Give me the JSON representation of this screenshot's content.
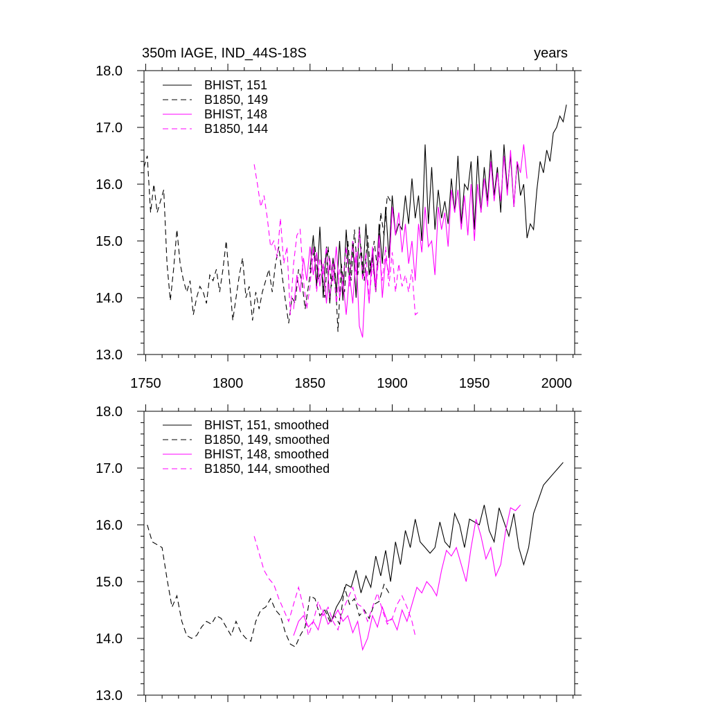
{
  "figure": {
    "title_left": "350m IAGE, IND_44S-18S",
    "title_right": "years"
  },
  "colors": {
    "black": "#000000",
    "magenta": "#ff00ff"
  },
  "chart_data": [
    {
      "type": "line",
      "title": "350m IAGE, IND_44S-18S",
      "units": "years",
      "xlim": [
        1749,
        2011
      ],
      "ylim": [
        13.0,
        18.0
      ],
      "xticks": [
        1750,
        1800,
        1850,
        1900,
        1950,
        2000
      ],
      "yticks": [
        13.0,
        14.0,
        15.0,
        16.0,
        17.0,
        18.0
      ],
      "xtick_labels": [
        "1750",
        "1800",
        "1850",
        "1900",
        "1950",
        "2000"
      ],
      "ytick_labels": [
        "13.0",
        "14.0",
        "15.0",
        "16.0",
        "17.0",
        "18.0"
      ],
      "legend_position": "top-left",
      "series": [
        {
          "name": "BHIST, 151",
          "color": "#000000",
          "dash": "solid",
          "x": [
            1850,
            1852,
            1854,
            1856,
            1858,
            1860,
            1862,
            1864,
            1866,
            1868,
            1870,
            1872,
            1874,
            1876,
            1878,
            1880,
            1882,
            1884,
            1886,
            1888,
            1890,
            1892,
            1894,
            1896,
            1898,
            1900,
            1902,
            1904,
            1906,
            1908,
            1910,
            1912,
            1914,
            1916,
            1918,
            1920,
            1922,
            1924,
            1926,
            1928,
            1930,
            1932,
            1934,
            1936,
            1938,
            1940,
            1942,
            1944,
            1946,
            1948,
            1950,
            1952,
            1954,
            1956,
            1958,
            1960,
            1962,
            1964,
            1966,
            1968,
            1970,
            1972,
            1974,
            1976,
            1978,
            1980,
            1982,
            1984,
            1986,
            1988,
            1990,
            1992,
            1994,
            1996,
            1998,
            2000,
            2002,
            2004,
            2006
          ],
          "y": [
            14.5,
            15.1,
            14.2,
            15.25,
            14.0,
            14.9,
            13.9,
            14.7,
            14.1,
            15.0,
            13.95,
            15.2,
            14.3,
            15.0,
            14.0,
            15.25,
            14.35,
            15.3,
            14.4,
            14.8,
            14.1,
            15.3,
            14.6,
            15.6,
            14.7,
            15.8,
            15.1,
            15.3,
            15.2,
            15.8,
            15.3,
            16.1,
            15.4,
            15.8,
            15.0,
            16.7,
            15.3,
            16.3,
            15.2,
            15.9,
            15.4,
            15.7,
            15.3,
            16.1,
            15.5,
            16.5,
            15.3,
            16.0,
            15.9,
            16.4,
            15.2,
            16.5,
            15.5,
            16.3,
            15.7,
            16.6,
            15.8,
            16.3,
            15.5,
            16.7,
            15.9,
            16.5,
            15.6,
            16.4,
            15.8,
            16.0,
            15.05,
            15.3,
            15.2,
            15.9,
            16.4,
            16.2,
            16.6,
            16.4,
            16.9,
            17.0,
            17.2,
            17.1,
            17.4
          ]
        },
        {
          "name": "B1850, 149",
          "color": "#000000",
          "dash": "dashed",
          "x": [
            1749,
            1751,
            1753,
            1755,
            1757,
            1759,
            1761,
            1763,
            1765,
            1767,
            1769,
            1771,
            1773,
            1775,
            1777,
            1779,
            1781,
            1783,
            1785,
            1787,
            1789,
            1791,
            1793,
            1795,
            1797,
            1799,
            1801,
            1803,
            1805,
            1807,
            1809,
            1811,
            1813,
            1815,
            1817,
            1819,
            1821,
            1823,
            1825,
            1827,
            1829,
            1831,
            1833,
            1835,
            1837,
            1839,
            1841,
            1843,
            1845,
            1847,
            1849,
            1851,
            1853,
            1855,
            1857,
            1859,
            1861,
            1863,
            1865,
            1867,
            1869,
            1871,
            1873,
            1875,
            1877,
            1879,
            1881,
            1883,
            1885,
            1887,
            1889,
            1891,
            1893,
            1895,
            1897,
            1899
          ],
          "y": [
            16.3,
            16.5,
            15.5,
            16.0,
            15.5,
            15.7,
            15.9,
            14.6,
            13.95,
            14.5,
            15.2,
            14.6,
            14.3,
            14.1,
            14.3,
            13.7,
            14.0,
            14.2,
            14.1,
            13.9,
            14.4,
            14.3,
            14.5,
            14.1,
            14.5,
            15.0,
            14.3,
            13.6,
            14.0,
            14.4,
            14.7,
            14.0,
            14.2,
            13.6,
            14.1,
            13.8,
            14.1,
            14.3,
            14.5,
            14.1,
            14.6,
            14.9,
            14.4,
            13.95,
            13.55,
            14.0,
            13.9,
            14.5,
            14.3,
            13.8,
            14.2,
            14.6,
            14.9,
            14.3,
            14.5,
            14.0,
            14.9,
            14.2,
            14.6,
            13.4,
            14.6,
            14.1,
            15.0,
            14.3,
            15.2,
            14.4,
            14.9,
            14.3,
            15.1,
            14.4,
            15.0,
            14.5,
            15.5,
            15.1,
            15.8,
            15.7
          ]
        },
        {
          "name": "BHIST, 148",
          "color": "#ff00ff",
          "dash": "solid",
          "x": [
            1840,
            1842,
            1844,
            1846,
            1848,
            1850,
            1852,
            1854,
            1856,
            1858,
            1860,
            1862,
            1864,
            1866,
            1868,
            1870,
            1872,
            1874,
            1876,
            1878,
            1880,
            1882,
            1884,
            1886,
            1888,
            1890,
            1892,
            1894,
            1896,
            1898,
            1900,
            1902,
            1904,
            1906,
            1908,
            1910,
            1912,
            1914,
            1916,
            1918,
            1920,
            1922,
            1924,
            1926,
            1928,
            1930,
            1932,
            1934,
            1936,
            1938,
            1940,
            1942,
            1944,
            1946,
            1948,
            1950,
            1952,
            1954,
            1956,
            1958,
            1960,
            1962,
            1964,
            1966,
            1968,
            1970,
            1972,
            1974,
            1976,
            1978,
            1980,
            1982
          ],
          "y": [
            13.8,
            14.4,
            14.1,
            14.7,
            14.3,
            14.9,
            14.4,
            14.8,
            14.2,
            14.6,
            13.9,
            14.7,
            14.3,
            14.9,
            14.0,
            14.3,
            13.7,
            14.4,
            13.9,
            14.8,
            13.5,
            13.3,
            14.5,
            13.9,
            14.9,
            14.2,
            15.1,
            14.0,
            14.7,
            14.4,
            15.6,
            15.1,
            15.5,
            14.8,
            15.3,
            14.6,
            15.0,
            14.3,
            15.3,
            14.8,
            15.6,
            14.9,
            15.0,
            14.4,
            15.6,
            15.2,
            15.5,
            14.9,
            15.9,
            15.5,
            15.9,
            15.2,
            15.8,
            15.1,
            16.0,
            15.0,
            16.0,
            15.5,
            16.1,
            15.6,
            16.4,
            15.7,
            16.2,
            15.7,
            16.5,
            15.8,
            16.6,
            15.6,
            16.4,
            16.2,
            16.7,
            16.1
          ]
        },
        {
          "name": "B1850, 144",
          "color": "#ff00ff",
          "dash": "dashed",
          "x": [
            1816,
            1818,
            1820,
            1822,
            1824,
            1826,
            1828,
            1830,
            1832,
            1834,
            1836,
            1838,
            1840,
            1842,
            1844,
            1846,
            1848,
            1850,
            1852,
            1854,
            1856,
            1858,
            1860,
            1862,
            1864,
            1866,
            1868,
            1870,
            1872,
            1874,
            1876,
            1878,
            1880,
            1882,
            1884,
            1886,
            1888,
            1890,
            1892,
            1894,
            1896,
            1898,
            1900,
            1902,
            1904,
            1906,
            1908,
            1910,
            1912,
            1914,
            1916
          ],
          "y": [
            16.35,
            16.0,
            15.6,
            15.8,
            15.4,
            14.9,
            15.0,
            14.7,
            15.4,
            14.6,
            14.9,
            13.7,
            14.6,
            15.1,
            15.2,
            14.3,
            13.8,
            14.2,
            14.9,
            14.1,
            14.7,
            14.4,
            14.9,
            14.0,
            14.6,
            13.9,
            14.5,
            14.3,
            14.9,
            14.2,
            15.0,
            14.4,
            15.2,
            14.3,
            14.8,
            13.95,
            14.6,
            14.1,
            14.8,
            14.3,
            14.9,
            14.2,
            14.8,
            14.1,
            14.6,
            14.2,
            14.4,
            14.1,
            14.5,
            13.7,
            13.75
          ]
        }
      ]
    },
    {
      "type": "line",
      "xlim": [
        1749,
        2011
      ],
      "ylim": [
        13.0,
        18.0
      ],
      "yticks": [
        13.0,
        14.0,
        15.0,
        16.0,
        17.0,
        18.0
      ],
      "ytick_labels": [
        "13.0",
        "14.0",
        "15.0",
        "16.0",
        "17.0",
        "18.0"
      ],
      "xticks": [
        1750,
        1800,
        1850,
        1900,
        1950,
        2000
      ],
      "legend_position": "top-left",
      "series": [
        {
          "name": "BHIST, 151, smoothed",
          "color": "#000000",
          "dash": "solid",
          "x": [
            1860,
            1863,
            1866,
            1869,
            1872,
            1875,
            1878,
            1881,
            1884,
            1887,
            1890,
            1893,
            1896,
            1899,
            1902,
            1905,
            1908,
            1911,
            1914,
            1917,
            1920,
            1923,
            1926,
            1929,
            1932,
            1935,
            1938,
            1941,
            1944,
            1947,
            1950,
            1953,
            1956,
            1959,
            1962,
            1965,
            1968,
            1971,
            1974,
            1977,
            1980,
            1983,
            1986,
            1989,
            1992,
            1995,
            1998,
            2001,
            2004
          ],
          "y": [
            14.5,
            14.3,
            14.55,
            14.7,
            14.95,
            14.9,
            15.2,
            14.8,
            15.1,
            14.9,
            15.45,
            15.1,
            15.55,
            15.0,
            15.7,
            15.3,
            15.9,
            15.6,
            16.1,
            15.7,
            15.6,
            15.5,
            15.6,
            16.05,
            15.7,
            15.6,
            16.2,
            16.0,
            15.6,
            16.1,
            16.05,
            16.0,
            16.35,
            15.9,
            15.7,
            16.3,
            16.05,
            15.8,
            16.2,
            15.6,
            15.3,
            15.6,
            16.2,
            16.45,
            16.7,
            16.8,
            16.9,
            17.0,
            17.1
          ]
        },
        {
          "name": "B1850, 149, smoothed",
          "color": "#000000",
          "dash": "dashed",
          "x": [
            1751,
            1754,
            1757,
            1760,
            1763,
            1766,
            1769,
            1772,
            1775,
            1778,
            1781,
            1784,
            1787,
            1790,
            1793,
            1796,
            1799,
            1802,
            1805,
            1808,
            1811,
            1814,
            1817,
            1820,
            1823,
            1826,
            1829,
            1832,
            1835,
            1838,
            1841,
            1844,
            1847,
            1850,
            1853,
            1856,
            1859,
            1862,
            1865,
            1868,
            1871,
            1874,
            1877,
            1880,
            1883,
            1886,
            1889,
            1892,
            1895,
            1898
          ],
          "y": [
            16.0,
            15.7,
            15.65,
            15.6,
            15.05,
            14.55,
            14.75,
            14.3,
            14.05,
            14.0,
            14.05,
            14.2,
            14.3,
            14.25,
            14.4,
            14.35,
            14.2,
            14.05,
            14.3,
            14.1,
            14.0,
            13.95,
            14.3,
            14.5,
            14.55,
            14.7,
            14.5,
            14.4,
            14.1,
            13.9,
            13.85,
            14.05,
            14.2,
            14.75,
            14.7,
            14.4,
            14.5,
            14.3,
            14.4,
            14.25,
            14.9,
            14.6,
            14.7,
            14.4,
            14.5,
            14.35,
            14.6,
            14.65,
            14.95,
            14.8
          ]
        },
        {
          "name": "BHIST, 148, smoothed",
          "color": "#ff00ff",
          "dash": "solid",
          "x": [
            1840,
            1843,
            1846,
            1849,
            1852,
            1855,
            1858,
            1861,
            1864,
            1867,
            1870,
            1873,
            1876,
            1879,
            1882,
            1885,
            1888,
            1891,
            1894,
            1897,
            1900,
            1903,
            1906,
            1909,
            1912,
            1915,
            1918,
            1921,
            1924,
            1927,
            1930,
            1933,
            1936,
            1939,
            1942,
            1945,
            1948,
            1951,
            1954,
            1957,
            1960,
            1963,
            1966,
            1969,
            1972,
            1975,
            1978
          ],
          "y": [
            14.05,
            14.3,
            14.4,
            14.2,
            14.3,
            14.15,
            14.5,
            14.25,
            14.35,
            14.5,
            14.3,
            14.4,
            14.1,
            14.3,
            13.8,
            14.0,
            14.4,
            14.2,
            14.55,
            14.3,
            14.35,
            14.15,
            14.5,
            14.3,
            14.6,
            14.9,
            14.8,
            15.0,
            14.9,
            14.75,
            15.2,
            15.55,
            15.45,
            15.6,
            15.3,
            15.0,
            15.6,
            16.1,
            15.8,
            15.4,
            15.6,
            15.1,
            15.3,
            15.9,
            16.3,
            16.25,
            16.35
          ]
        },
        {
          "name": "B1850, 144, smoothed",
          "color": "#ff00ff",
          "dash": "dashed",
          "x": [
            1816,
            1819,
            1822,
            1825,
            1828,
            1831,
            1834,
            1837,
            1840,
            1843,
            1846,
            1849,
            1852,
            1855,
            1858,
            1861,
            1864,
            1867,
            1870,
            1873,
            1876,
            1879,
            1882,
            1885,
            1888,
            1891,
            1894,
            1897,
            1900,
            1903,
            1906,
            1909,
            1912,
            1914
          ],
          "y": [
            15.8,
            15.5,
            15.2,
            15.05,
            14.95,
            14.7,
            14.5,
            14.3,
            14.6,
            14.9,
            14.55,
            14.05,
            14.3,
            14.65,
            14.4,
            14.55,
            14.3,
            14.15,
            14.5,
            14.7,
            14.9,
            14.6,
            14.55,
            14.3,
            14.55,
            14.8,
            14.5,
            14.25,
            14.35,
            14.6,
            14.75,
            14.55,
            14.3,
            14.05
          ]
        }
      ]
    }
  ]
}
